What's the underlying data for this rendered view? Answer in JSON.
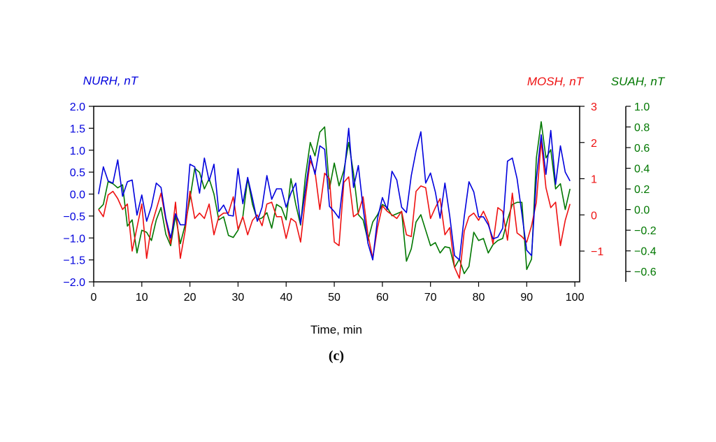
{
  "chart_data": {
    "type": "line",
    "xlabel": "Time, min",
    "caption": "(c)",
    "xlim": [
      0,
      101
    ],
    "x_ticks": [
      0,
      10,
      20,
      30,
      40,
      50,
      60,
      70,
      80,
      90,
      100
    ],
    "grid": false,
    "legend": "none",
    "axes": [
      {
        "id": "left",
        "label": "NURH, nT",
        "color": "#0000dd",
        "ylim": [
          -2.0,
          2.0
        ],
        "ticks": [
          "2.0",
          "1.5",
          "1.0",
          "0.5",
          "0.0",
          "−0.5",
          "−1.0",
          "−1.5",
          "−2.0"
        ]
      },
      {
        "id": "right1",
        "label": "MOSH, nT",
        "color": "#ee1111",
        "ylim": [
          -1.85,
          3.0
        ],
        "ticks": [
          "3",
          "2",
          "1",
          "0",
          "−1"
        ]
      },
      {
        "id": "right2",
        "label": "SUAH, nT",
        "color": "#007700",
        "ylim": [
          -0.7,
          1.0
        ],
        "ticks": [
          "1.0",
          "0.8",
          "0.6",
          "0.4",
          "0.2",
          "0.0",
          "−0.2",
          "−0.4",
          "−0.6"
        ]
      }
    ],
    "series": [
      {
        "name": "NURH",
        "axis": "left",
        "color": "#0000dd",
        "values": [
          0.0,
          0.62,
          0.3,
          0.25,
          0.78,
          -0.05,
          0.28,
          0.32,
          -0.48,
          -0.02,
          -0.62,
          -0.28,
          0.25,
          0.15,
          -0.55,
          -1.0,
          -0.45,
          -0.7,
          -0.7,
          0.68,
          0.62,
          0.02,
          0.82,
          0.3,
          0.68,
          -0.4,
          -0.25,
          -0.48,
          -0.5,
          0.58,
          -0.22,
          0.38,
          -0.1,
          -0.62,
          -0.3,
          0.42,
          -0.12,
          0.12,
          0.12,
          -0.3,
          0.02,
          0.25,
          -0.68,
          0.1,
          0.88,
          0.45,
          1.1,
          1.02,
          -0.28,
          -0.4,
          -0.55,
          0.4,
          1.5,
          0.15,
          0.65,
          -0.32,
          -1.12,
          -1.5,
          -0.55,
          -0.08,
          -0.35,
          0.52,
          0.32,
          -0.3,
          -0.42,
          0.42,
          0.98,
          1.42,
          0.25,
          0.48,
          0.05,
          -0.55,
          0.25,
          -0.5,
          -1.4,
          -1.5,
          -0.52,
          0.28,
          0.05,
          -0.52,
          -0.52,
          -0.7,
          -1.02,
          -0.98,
          -0.78,
          0.75,
          0.82,
          0.35,
          -0.45,
          -1.28,
          -1.4,
          0.35,
          1.35,
          0.45,
          1.45,
          0.22,
          1.1,
          0.5,
          0.3
        ]
      },
      {
        "name": "MOSH",
        "axis": "right1",
        "color": "#ee1111",
        "values": [
          0.15,
          -0.05,
          0.55,
          0.65,
          0.45,
          0.15,
          0.3,
          -1.0,
          -0.35,
          0.3,
          -1.2,
          -0.3,
          0.15,
          0.6,
          -0.15,
          -0.8,
          0.35,
          -1.2,
          -0.45,
          0.65,
          -0.1,
          0.05,
          -0.1,
          0.3,
          -0.55,
          -0.05,
          0.05,
          0.05,
          0.5,
          -0.4,
          -0.05,
          -0.55,
          -0.15,
          0.0,
          -0.3,
          0.3,
          0.35,
          -0.05,
          -0.05,
          -0.65,
          -0.1,
          -0.2,
          -0.75,
          0.45,
          1.5,
          1.2,
          0.15,
          1.15,
          1.0,
          -0.75,
          -0.85,
          0.9,
          1.05,
          -0.05,
          0.05,
          0.5,
          -0.55,
          -1.2,
          -0.35,
          0.25,
          0.1,
          0.0,
          -0.1,
          0.1,
          -0.55,
          -0.6,
          0.65,
          0.8,
          0.75,
          -0.1,
          0.2,
          0.45,
          -0.55,
          -0.35,
          -1.45,
          -1.75,
          -0.45,
          -0.05,
          0.05,
          -0.15,
          0.1,
          -0.2,
          -0.8,
          0.2,
          0.1,
          -0.7,
          0.6,
          -0.5,
          -0.6,
          -0.75,
          -0.3,
          0.35,
          2.05,
          0.75,
          0.2,
          0.35,
          -0.85,
          -0.15,
          0.3
        ]
      },
      {
        "name": "SUAH",
        "axis": "right2",
        "color": "#007700",
        "values": [
          0.0,
          0.05,
          0.27,
          0.25,
          0.21,
          0.24,
          -0.16,
          -0.1,
          -0.42,
          -0.2,
          -0.22,
          -0.3,
          -0.1,
          0.02,
          -0.24,
          -0.35,
          -0.06,
          -0.33,
          -0.15,
          0.1,
          0.4,
          0.36,
          0.2,
          0.3,
          0.15,
          -0.1,
          -0.07,
          -0.25,
          -0.27,
          -0.2,
          -0.07,
          0.3,
          0.05,
          -0.1,
          -0.08,
          -0.03,
          -0.18,
          0.05,
          0.02,
          -0.1,
          0.3,
          0.05,
          -0.15,
          0.32,
          0.65,
          0.52,
          0.75,
          0.8,
          0.2,
          0.45,
          0.23,
          0.38,
          0.65,
          0.35,
          -0.05,
          -0.1,
          -0.3,
          -0.12,
          -0.05,
          0.05,
          0.02,
          -0.06,
          -0.04,
          -0.02,
          -0.5,
          -0.38,
          -0.12,
          -0.05,
          -0.2,
          -0.35,
          -0.32,
          -0.42,
          -0.36,
          -0.37,
          -0.56,
          -0.48,
          -0.62,
          -0.55,
          -0.22,
          -0.3,
          -0.28,
          -0.42,
          -0.34,
          -0.3,
          -0.28,
          -0.1,
          0.05,
          0.07,
          0.07,
          -0.58,
          -0.48,
          0.5,
          0.85,
          0.5,
          0.58,
          0.2,
          0.25,
          0.0,
          0.2
        ]
      }
    ]
  }
}
